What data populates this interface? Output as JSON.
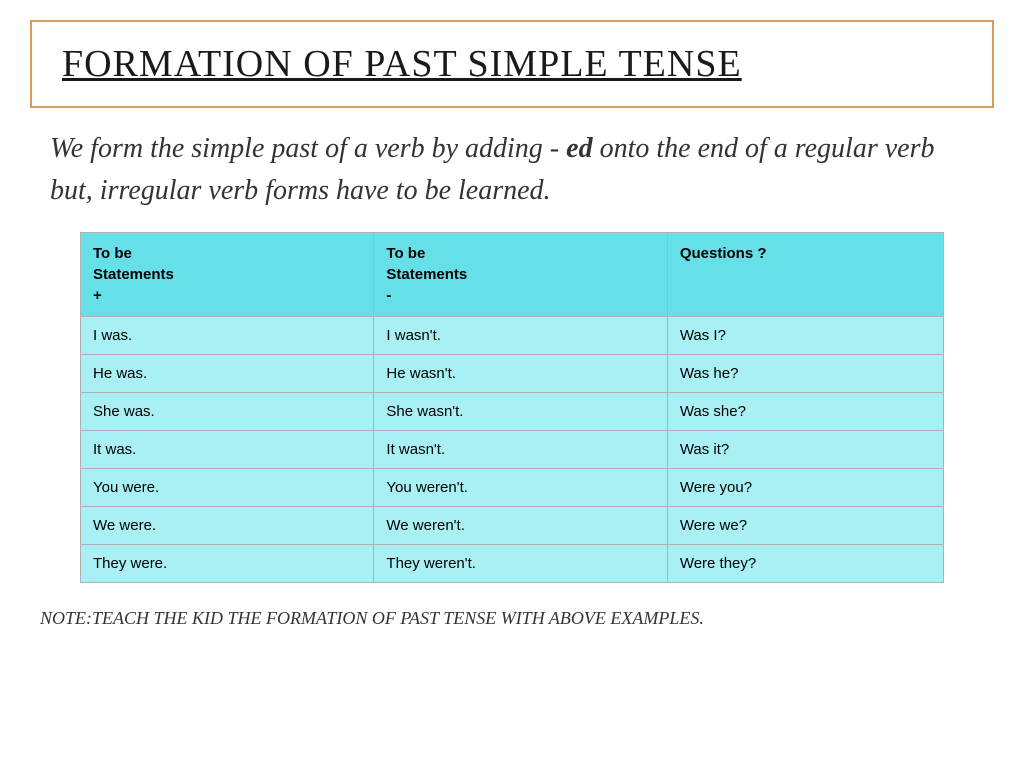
{
  "title": "FORMATION OF PAST SIMPLE TENSE",
  "intro": {
    "pre": "We form the simple past of a verb by adding - ",
    "bold": "ed",
    "post": " onto the end of a regular verb but, irregular verb forms have to be learned."
  },
  "table": {
    "headers": {
      "col1": {
        "l1": "To be",
        "l2": "Statements",
        "l3": "+"
      },
      "col2": {
        "l1": "To be",
        "l2": "Statements",
        "l3": "-"
      },
      "col3": {
        "l1": "Questions ?",
        "l2": "",
        "l3": ""
      }
    },
    "rows": [
      {
        "c1": "I was.",
        "c2": "I wasn't.",
        "c3": "Was I?"
      },
      {
        "c1": "He was.",
        "c2": "He wasn't.",
        "c3": "Was he?"
      },
      {
        "c1": "She was.",
        "c2": "She wasn't.",
        "c3": "Was she?"
      },
      {
        "c1": "It was.",
        "c2": "It wasn't.",
        "c3": "Was it?"
      },
      {
        "c1": "You were.",
        "c2": "You weren't.",
        "c3": "Were you?"
      },
      {
        "c1": "We were.",
        "c2": "We weren't.",
        "c3": "Were we?"
      },
      {
        "c1": "They were.",
        "c2": "They weren't.",
        "c3": "Were they?"
      }
    ]
  },
  "note": "NOTE:TEACH THE KID THE FORMATION OF PAST TENSE WITH ABOVE EXAMPLES.",
  "style": {
    "title_border_color": "#d89c5c",
    "header_bg": "#66e0e8",
    "cell_bg": "#a8f0f4",
    "border_color": "#b0b0b0",
    "title_fontsize": 38,
    "intro_fontsize": 28,
    "cell_fontsize": 15,
    "note_fontsize": 18
  }
}
